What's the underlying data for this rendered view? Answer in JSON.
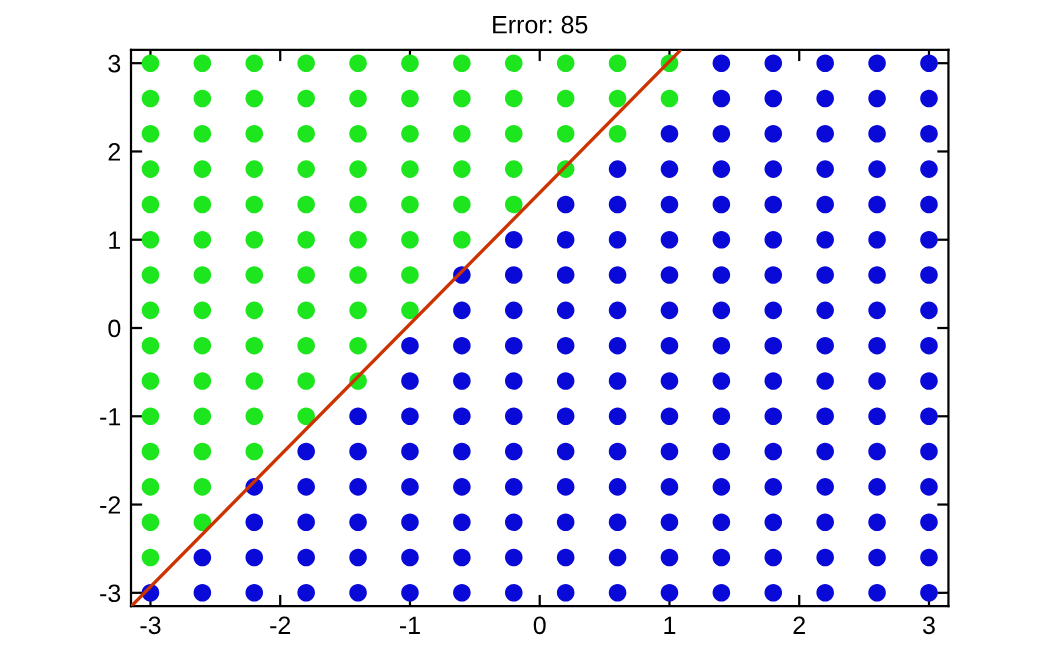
{
  "chart_data": {
    "type": "scatter",
    "title": "Error: 85",
    "xlim": [
      -3.15,
      3.15
    ],
    "ylim": [
      -3.15,
      3.15
    ],
    "xticks": [
      -3,
      -2,
      -1,
      0,
      1,
      2,
      3
    ],
    "yticks": [
      -3,
      -2,
      -1,
      0,
      1,
      2,
      3
    ],
    "grid": false,
    "marker": "circle",
    "series": [
      {
        "color": "#0a0ad8",
        "x": [
          -3.0,
          -2.6,
          -2.6,
          -2.2,
          -2.2,
          -2.2,
          -2.2,
          -1.8,
          -1.8,
          -1.8,
          -1.8,
          -1.8,
          -1.4,
          -1.4,
          -1.4,
          -1.4,
          -1.4,
          -1.4,
          -1.0,
          -1.0,
          -1.0,
          -1.0,
          -1.0,
          -1.0,
          -1.0,
          -1.0,
          -0.6,
          -0.6,
          -0.6,
          -0.6,
          -0.6,
          -0.6,
          -0.6,
          -0.6,
          -0.6,
          -0.6,
          -0.2,
          -0.2,
          -0.2,
          -0.2,
          -0.2,
          -0.2,
          -0.2,
          -0.2,
          -0.2,
          -0.2,
          -0.2,
          0.2,
          0.2,
          0.2,
          0.2,
          0.2,
          0.2,
          0.2,
          0.2,
          0.2,
          0.2,
          0.2,
          0.2,
          0.6,
          0.6,
          0.6,
          0.6,
          0.6,
          0.6,
          0.6,
          0.6,
          0.6,
          0.6,
          0.6,
          0.6,
          0.6,
          1.0,
          1.0,
          1.0,
          1.0,
          1.0,
          1.0,
          1.0,
          1.0,
          1.0,
          1.0,
          1.0,
          1.0,
          1.0,
          1.0,
          1.4,
          1.4,
          1.4,
          1.4,
          1.4,
          1.4,
          1.4,
          1.4,
          1.4,
          1.4,
          1.4,
          1.4,
          1.4,
          1.4,
          1.4,
          1.4,
          1.8,
          1.8,
          1.8,
          1.8,
          1.8,
          1.8,
          1.8,
          1.8,
          1.8,
          1.8,
          1.8,
          1.8,
          1.8,
          1.8,
          1.8,
          1.8,
          2.2,
          2.2,
          2.2,
          2.2,
          2.2,
          2.2,
          2.2,
          2.2,
          2.2,
          2.2,
          2.2,
          2.2,
          2.2,
          2.2,
          2.2,
          2.2,
          2.6,
          2.6,
          2.6,
          2.6,
          2.6,
          2.6,
          2.6,
          2.6,
          2.6,
          2.6,
          2.6,
          2.6,
          2.6,
          2.6,
          2.6,
          2.6,
          3.0,
          3.0,
          3.0,
          3.0,
          3.0,
          3.0,
          3.0,
          3.0,
          3.0,
          3.0,
          3.0,
          3.0,
          3.0,
          3.0,
          3.0,
          3.0
        ],
        "values": [
          -3.0,
          -3.0,
          -2.6,
          -3.0,
          -2.6,
          -2.2,
          -1.8,
          -3.0,
          -2.6,
          -2.2,
          -1.8,
          -1.4,
          -3.0,
          -2.6,
          -2.2,
          -1.8,
          -1.4,
          -1.0,
          -3.0,
          -2.6,
          -2.2,
          -1.8,
          -1.4,
          -1.0,
          -0.6,
          -0.2,
          -3.0,
          -2.6,
          -2.2,
          -1.8,
          -1.4,
          -1.0,
          -0.6,
          -0.2,
          0.2,
          0.6,
          -3.0,
          -2.6,
          -2.2,
          -1.8,
          -1.4,
          -1.0,
          -0.6,
          -0.2,
          0.2,
          0.6,
          1.0,
          -3.0,
          -2.6,
          -2.2,
          -1.8,
          -1.4,
          -1.0,
          -0.6,
          -0.2,
          0.2,
          0.6,
          1.0,
          1.4,
          -3.0,
          -2.6,
          -2.2,
          -1.8,
          -1.4,
          -1.0,
          -0.6,
          -0.2,
          0.2,
          0.6,
          1.0,
          1.4,
          1.8,
          -3.0,
          -2.6,
          -2.2,
          -1.8,
          -1.4,
          -1.0,
          -0.6,
          -0.2,
          0.2,
          0.6,
          1.0,
          1.4,
          1.8,
          2.2,
          -3.0,
          -2.6,
          -2.2,
          -1.8,
          -1.4,
          -1.0,
          -0.6,
          -0.2,
          0.2,
          0.6,
          1.0,
          1.4,
          1.8,
          2.2,
          2.6,
          3.0,
          -3.0,
          -2.6,
          -2.2,
          -1.8,
          -1.4,
          -1.0,
          -0.6,
          -0.2,
          0.2,
          0.6,
          1.0,
          1.4,
          1.8,
          2.2,
          2.6,
          3.0,
          -3.0,
          -2.6,
          -2.2,
          -1.8,
          -1.4,
          -1.0,
          -0.6,
          -0.2,
          0.2,
          0.6,
          1.0,
          1.4,
          1.8,
          2.2,
          2.6,
          3.0,
          -3.0,
          -2.6,
          -2.2,
          -1.8,
          -1.4,
          -1.0,
          -0.6,
          -0.2,
          0.2,
          0.6,
          1.0,
          1.4,
          1.8,
          2.2,
          2.6,
          3.0,
          -3.0,
          -2.6,
          -2.2,
          -1.8,
          -1.4,
          -1.0,
          -0.6,
          -0.2,
          0.2,
          0.6,
          1.0,
          1.4,
          1.8,
          2.2,
          2.6,
          3.0
        ]
      },
      {
        "color": "#1ee61e",
        "x": [
          -3.0,
          -3.0,
          -3.0,
          -3.0,
          -3.0,
          -3.0,
          -3.0,
          -3.0,
          -3.0,
          -3.0,
          -3.0,
          -3.0,
          -3.0,
          -3.0,
          -3.0,
          -2.6,
          -2.6,
          -2.6,
          -2.6,
          -2.6,
          -2.6,
          -2.6,
          -2.6,
          -2.6,
          -2.6,
          -2.6,
          -2.6,
          -2.6,
          -2.6,
          -2.2,
          -2.2,
          -2.2,
          -2.2,
          -2.2,
          -2.2,
          -2.2,
          -2.2,
          -2.2,
          -2.2,
          -2.2,
          -2.2,
          -1.8,
          -1.8,
          -1.8,
          -1.8,
          -1.8,
          -1.8,
          -1.8,
          -1.8,
          -1.8,
          -1.8,
          -1.8,
          -1.4,
          -1.4,
          -1.4,
          -1.4,
          -1.4,
          -1.4,
          -1.4,
          -1.4,
          -1.4,
          -1.4,
          -1.0,
          -1.0,
          -1.0,
          -1.0,
          -1.0,
          -1.0,
          -1.0,
          -1.0,
          -0.6,
          -0.6,
          -0.6,
          -0.6,
          -0.6,
          -0.6,
          -0.2,
          -0.2,
          -0.2,
          -0.2,
          -0.2,
          0.2,
          0.2,
          0.2,
          0.2,
          0.6,
          0.6,
          0.6,
          1.0,
          1.0
        ],
        "values": [
          -2.6,
          -2.2,
          -1.8,
          -1.4,
          -1.0,
          -0.6,
          -0.2,
          0.2,
          0.6,
          1.0,
          1.4,
          1.8,
          2.2,
          2.6,
          3.0,
          -2.2,
          -1.8,
          -1.4,
          -1.0,
          -0.6,
          -0.2,
          0.2,
          0.6,
          1.0,
          1.4,
          1.8,
          2.2,
          2.6,
          3.0,
          -1.4,
          -1.0,
          -0.6,
          -0.2,
          0.2,
          0.6,
          1.0,
          1.4,
          1.8,
          2.2,
          2.6,
          3.0,
          -1.0,
          -0.6,
          -0.2,
          0.2,
          0.6,
          1.0,
          1.4,
          1.8,
          2.2,
          2.6,
          3.0,
          -0.6,
          -0.2,
          0.2,
          0.6,
          1.0,
          1.4,
          1.8,
          2.2,
          2.6,
          3.0,
          0.2,
          0.6,
          1.0,
          1.4,
          1.8,
          2.2,
          2.6,
          3.0,
          1.0,
          1.4,
          1.8,
          2.2,
          2.6,
          3.0,
          1.4,
          1.8,
          2.2,
          2.6,
          3.0,
          1.8,
          2.2,
          2.6,
          3.0,
          2.2,
          2.6,
          3.0,
          2.6,
          3.0
        ]
      },
      {
        "color": "#cc3300",
        "type": "line",
        "marker": "none",
        "line_style": "solid",
        "x": [
          -3.14,
          1.08
        ],
        "values": [
          -3.14,
          3.14
        ]
      }
    ]
  }
}
